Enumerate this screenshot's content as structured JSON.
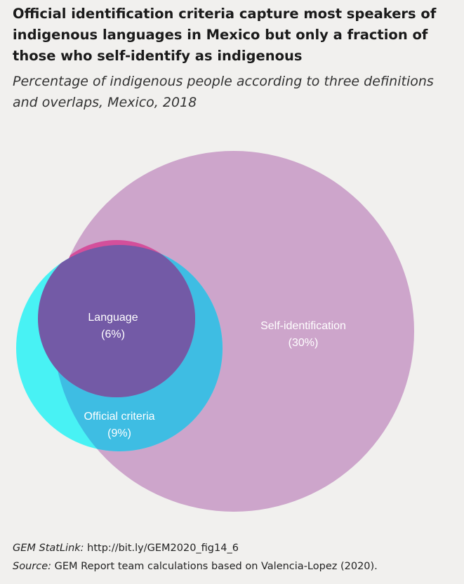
{
  "header": {
    "title": "Official identification criteria capture most speakers of indigenous languages in Mexico but only a fraction of those who self-identify as indigenous",
    "subtitle": "Percentage of indigenous people according to three definitions and overlaps, Mexico, 2018"
  },
  "chart_data": {
    "type": "venn",
    "sets": [
      {
        "name": "Self-identification",
        "value_label": "(30%)",
        "value": 30,
        "color": "#cda5cb"
      },
      {
        "name": "Official criteria",
        "value_label": "(9%)",
        "value": 9,
        "color": "#3ebde3"
      },
      {
        "name": "Language",
        "value_label": "(6%)",
        "value": 6,
        "color": "#735aa6"
      }
    ],
    "colors": {
      "official_outside_self": "#48f2f4",
      "language_outside_official": "#d44f9b",
      "background": "#f1f0ee"
    }
  },
  "footer": {
    "statlink_label": "GEM StatLink:",
    "statlink_url": " http://bit.ly/GEM2020_fig14_6",
    "source_label": "Source:",
    "source_text": " GEM Report team calculations based on Valencia-Lopez (2020)."
  }
}
